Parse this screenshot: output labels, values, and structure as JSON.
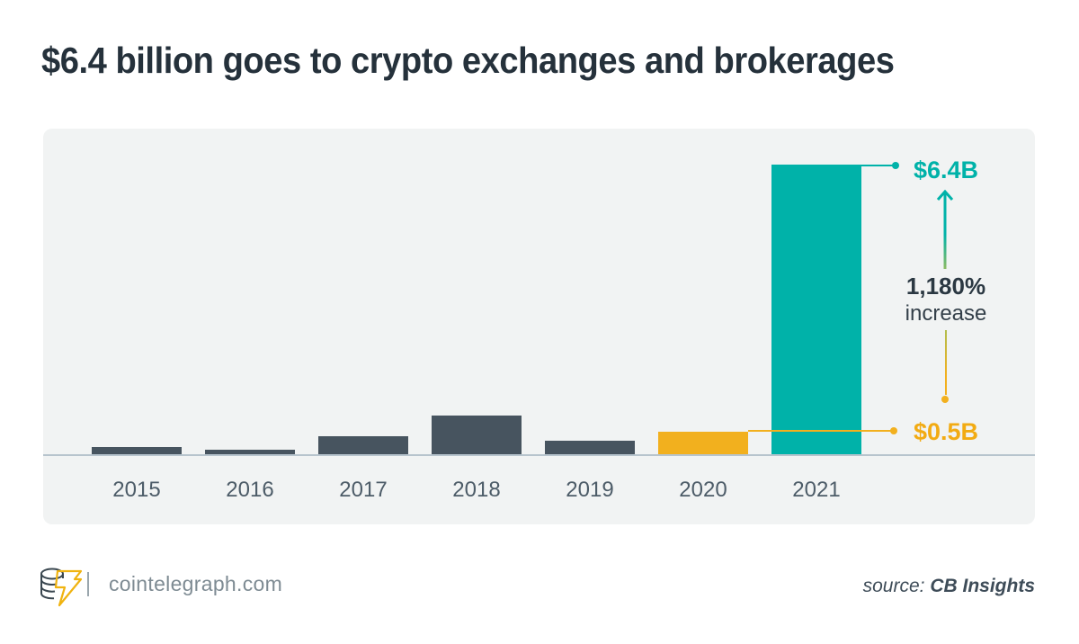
{
  "title": "$6.4 billion goes to crypto exchanges and brokerages",
  "chart_data": {
    "type": "bar",
    "title": "$6.4 billion goes to crypto exchanges and brokerages",
    "categories": [
      "2015",
      "2016",
      "2017",
      "2018",
      "2019",
      "2020",
      "2021"
    ],
    "values": [
      0.15,
      0.1,
      0.4,
      0.85,
      0.3,
      0.5,
      6.4
    ],
    "unit": "USD billions",
    "ylim": [
      0,
      6.4
    ],
    "grid": false,
    "legend": false,
    "bar_colors": [
      "#47545f",
      "#47545f",
      "#47545f",
      "#47545f",
      "#47545f",
      "#f2b01e",
      "#00b2a9"
    ],
    "annotations": {
      "max_label": "$6.4B",
      "base_label": "$0.5B",
      "change_value": "1,180%",
      "change_word": "increase",
      "max_year": "2021",
      "base_year": "2020"
    }
  },
  "colors": {
    "teal": "#00b2a9",
    "yellow": "#f2b01e",
    "slate_bar": "#47545f",
    "panel_bg": "#f1f3f3",
    "axis": "#b7c4cd",
    "title_text": "#25313b",
    "year_text": "#4d5c68"
  },
  "footer": {
    "site": "cointelegraph.com",
    "source_prefix": "source: ",
    "source_name": "CB Insights"
  }
}
